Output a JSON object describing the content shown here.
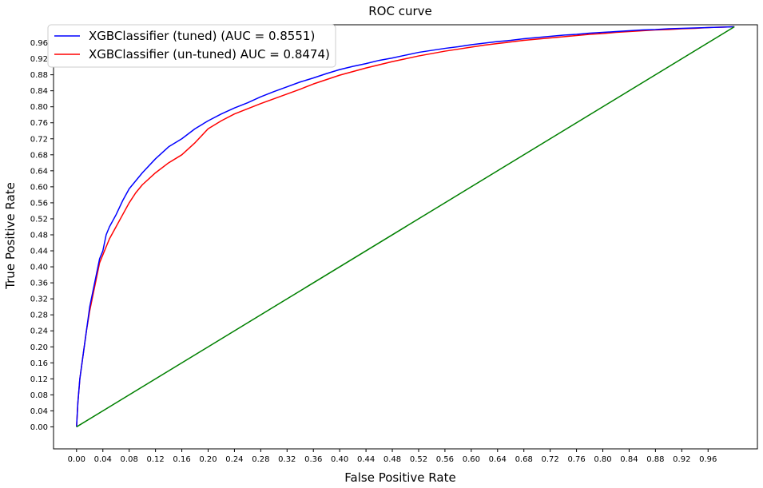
{
  "chart_data": {
    "type": "line",
    "title": "ROC curve",
    "xlabel": "False Positive Rate",
    "ylabel": "True Positive Rate",
    "xlim": [
      -0.035,
      1.035
    ],
    "ylim": [
      -0.055,
      1.005
    ],
    "xticks": [
      "0.00",
      "0.04",
      "0.08",
      "0.12",
      "0.16",
      "0.20",
      "0.24",
      "0.28",
      "0.32",
      "0.36",
      "0.40",
      "0.44",
      "0.48",
      "0.52",
      "0.56",
      "0.60",
      "0.64",
      "0.68",
      "0.72",
      "0.76",
      "0.80",
      "0.84",
      "0.88",
      "0.92",
      "0.96"
    ],
    "yticks": [
      "0.00",
      "0.04",
      "0.08",
      "0.12",
      "0.16",
      "0.20",
      "0.24",
      "0.28",
      "0.32",
      "0.36",
      "0.40",
      "0.44",
      "0.48",
      "0.52",
      "0.56",
      "0.60",
      "0.64",
      "0.68",
      "0.72",
      "0.76",
      "0.80",
      "0.84",
      "0.88",
      "0.92",
      "0.96"
    ],
    "grid": false,
    "legend_position": "top-left",
    "series": [
      {
        "name": "XGBClassifier (tuned) (AUC = 0.8551)",
        "color": "#0000ff",
        "x": [
          0.0,
          0.002,
          0.005,
          0.01,
          0.015,
          0.02,
          0.025,
          0.03,
          0.035,
          0.04,
          0.045,
          0.05,
          0.06,
          0.07,
          0.08,
          0.09,
          0.1,
          0.12,
          0.14,
          0.16,
          0.18,
          0.2,
          0.22,
          0.24,
          0.26,
          0.28,
          0.3,
          0.32,
          0.34,
          0.36,
          0.38,
          0.4,
          0.42,
          0.44,
          0.46,
          0.48,
          0.5,
          0.52,
          0.54,
          0.56,
          0.58,
          0.6,
          0.62,
          0.64,
          0.66,
          0.68,
          0.7,
          0.72,
          0.74,
          0.76,
          0.78,
          0.8,
          0.82,
          0.84,
          0.86,
          0.88,
          0.9,
          0.92,
          0.94,
          0.96,
          0.98,
          1.0
        ],
        "y": [
          0.0,
          0.06,
          0.12,
          0.18,
          0.24,
          0.3,
          0.34,
          0.38,
          0.42,
          0.44,
          0.48,
          0.5,
          0.53,
          0.565,
          0.595,
          0.615,
          0.635,
          0.67,
          0.7,
          0.72,
          0.745,
          0.765,
          0.782,
          0.797,
          0.81,
          0.825,
          0.838,
          0.85,
          0.862,
          0.872,
          0.883,
          0.893,
          0.901,
          0.908,
          0.916,
          0.922,
          0.929,
          0.936,
          0.941,
          0.946,
          0.95,
          0.955,
          0.959,
          0.963,
          0.966,
          0.97,
          0.973,
          0.976,
          0.979,
          0.981,
          0.984,
          0.986,
          0.988,
          0.99,
          0.992,
          0.993,
          0.995,
          0.996,
          0.997,
          0.998,
          0.999,
          1.0
        ]
      },
      {
        "name": "XGBClassifier (un-tuned) AUC = 0.8474)",
        "color": "#ff0000",
        "x": [
          0.0,
          0.002,
          0.005,
          0.01,
          0.015,
          0.02,
          0.025,
          0.03,
          0.035,
          0.04,
          0.045,
          0.05,
          0.06,
          0.07,
          0.08,
          0.09,
          0.1,
          0.12,
          0.14,
          0.16,
          0.18,
          0.2,
          0.22,
          0.24,
          0.26,
          0.28,
          0.3,
          0.32,
          0.34,
          0.36,
          0.38,
          0.4,
          0.42,
          0.44,
          0.46,
          0.48,
          0.5,
          0.52,
          0.54,
          0.56,
          0.58,
          0.6,
          0.62,
          0.64,
          0.66,
          0.68,
          0.7,
          0.72,
          0.74,
          0.76,
          0.78,
          0.8,
          0.82,
          0.84,
          0.86,
          0.88,
          0.9,
          0.92,
          0.94,
          0.96,
          0.98,
          1.0
        ],
        "y": [
          0.0,
          0.06,
          0.12,
          0.18,
          0.24,
          0.29,
          0.33,
          0.37,
          0.41,
          0.43,
          0.45,
          0.47,
          0.5,
          0.53,
          0.56,
          0.585,
          0.605,
          0.635,
          0.66,
          0.68,
          0.71,
          0.745,
          0.765,
          0.782,
          0.795,
          0.808,
          0.82,
          0.832,
          0.844,
          0.857,
          0.868,
          0.879,
          0.888,
          0.897,
          0.905,
          0.913,
          0.92,
          0.927,
          0.933,
          0.939,
          0.944,
          0.949,
          0.954,
          0.958,
          0.962,
          0.966,
          0.969,
          0.972,
          0.975,
          0.978,
          0.981,
          0.983,
          0.986,
          0.988,
          0.99,
          0.992,
          0.993,
          0.995,
          0.996,
          0.998,
          0.999,
          1.0
        ]
      },
      {
        "color": "#008000",
        "x": [
          0.0,
          1.0
        ],
        "y": [
          0.0,
          1.0
        ]
      }
    ]
  }
}
